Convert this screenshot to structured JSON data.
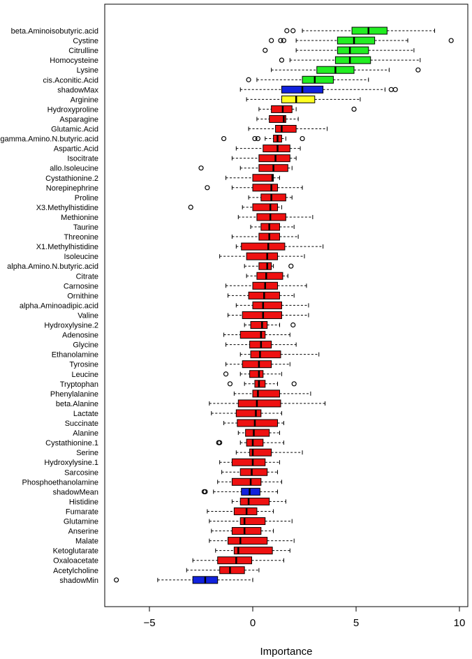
{
  "chart_data": {
    "type": "boxplot",
    "title": "",
    "xlabel": "Importance",
    "ylabel": "",
    "xlim": [
      -7.2,
      10.6
    ],
    "xticks": [
      -5,
      0,
      5,
      10
    ],
    "xtick_labels": [
      "−5",
      "0",
      "5",
      "10"
    ],
    "colors": {
      "confirmed": "#22ee22",
      "rejected": "#ee1111",
      "tentative": "#ffff22",
      "shadow": "#1122dd"
    },
    "items": [
      {
        "name": "beta.Aminoisobutyric.acid",
        "status": "confirmed",
        "wmin": 2.4,
        "q1": 4.8,
        "med": 5.6,
        "q3": 6.5,
        "wmax": 8.8,
        "out": [
          1.65,
          1.95
        ]
      },
      {
        "name": "Cystine",
        "status": "confirmed",
        "wmin": 2.1,
        "q1": 4.1,
        "med": 4.9,
        "q3": 5.9,
        "wmax": 7.5,
        "out": [
          0.9,
          1.35,
          1.5,
          9.6
        ]
      },
      {
        "name": "Citrulline",
        "status": "confirmed",
        "wmin": 2.1,
        "q1": 4.1,
        "med": 4.7,
        "q3": 5.6,
        "wmax": 7.8,
        "out": [
          0.6
        ]
      },
      {
        "name": "Homocysteine",
        "status": "confirmed",
        "wmin": 1.8,
        "q1": 4.0,
        "med": 4.7,
        "q3": 5.7,
        "wmax": 8.1,
        "out": [
          1.4
        ]
      },
      {
        "name": "Lysine",
        "status": "confirmed",
        "wmin": 0.9,
        "q1": 3.1,
        "med": 4.0,
        "q3": 4.9,
        "wmax": 6.6,
        "out": [
          8.0
        ]
      },
      {
        "name": "cis.Aconitic.Acid",
        "status": "confirmed",
        "wmin": 0.2,
        "q1": 2.4,
        "med": 3.0,
        "q3": 3.9,
        "wmax": 5.6,
        "out": [
          -0.2
        ]
      },
      {
        "name": "shadowMax",
        "status": "shadow",
        "wmin": -0.6,
        "q1": 1.4,
        "med": 2.4,
        "q3": 3.4,
        "wmax": 6.4,
        "out": [
          6.7,
          6.9
        ]
      },
      {
        "name": "Arginine",
        "status": "tentative",
        "wmin": -0.3,
        "q1": 1.4,
        "med": 2.1,
        "q3": 3.0,
        "wmax": 5.2,
        "out": []
      },
      {
        "name": "Hydroxyproline",
        "status": "rejected",
        "wmin": 0.3,
        "q1": 0.9,
        "med": 1.45,
        "q3": 1.9,
        "wmax": 2.1,
        "out": [
          4.9
        ]
      },
      {
        "name": "Asparagine",
        "status": "rejected",
        "wmin": 0.2,
        "q1": 0.8,
        "med": 1.5,
        "q3": 1.6,
        "wmax": 2.2,
        "out": []
      },
      {
        "name": "Glutamic.Acid",
        "status": "rejected",
        "wmin": -0.2,
        "q1": 1.1,
        "med": 1.4,
        "q3": 2.1,
        "wmax": 3.6,
        "out": []
      },
      {
        "name": "gamma.Amino.N.butyric.acid",
        "status": "rejected",
        "wmin": 0.6,
        "q1": 1.0,
        "med": 1.2,
        "q3": 1.4,
        "wmax": 1.6,
        "out": [
          -1.4,
          0.1,
          0.25,
          2.4
        ]
      },
      {
        "name": "Aspartic.Acid",
        "status": "rejected",
        "wmin": -0.8,
        "q1": 0.5,
        "med": 1.2,
        "q3": 1.8,
        "wmax": 2.3,
        "out": []
      },
      {
        "name": "Isocitrate",
        "status": "rejected",
        "wmin": -1.0,
        "q1": 0.3,
        "med": 1.1,
        "q3": 1.8,
        "wmax": 2.1,
        "out": []
      },
      {
        "name": "allo.Isoleucine",
        "status": "rejected",
        "wmin": -0.6,
        "q1": 0.3,
        "med": 1.0,
        "q3": 1.7,
        "wmax": 1.9,
        "out": [
          -2.5
        ]
      },
      {
        "name": "Cystathionine.2",
        "status": "rejected",
        "wmin": -1.3,
        "q1": 0.0,
        "med": 0.95,
        "q3": 1.0,
        "wmax": 1.3,
        "out": []
      },
      {
        "name": "Norepinephrine",
        "status": "rejected",
        "wmin": -1.0,
        "q1": 0.0,
        "med": 0.9,
        "q3": 1.2,
        "wmax": 2.4,
        "out": [
          -2.2
        ]
      },
      {
        "name": "Proline",
        "status": "rejected",
        "wmin": -0.2,
        "q1": 0.4,
        "med": 0.9,
        "q3": 1.6,
        "wmax": 1.9,
        "out": []
      },
      {
        "name": "X3.Methylhistidine",
        "status": "rejected",
        "wmin": -0.5,
        "q1": 0.0,
        "med": 0.85,
        "q3": 1.2,
        "wmax": 1.4,
        "out": [
          -3.0
        ]
      },
      {
        "name": "Methionine",
        "status": "rejected",
        "wmin": -0.7,
        "q1": 0.2,
        "med": 0.85,
        "q3": 1.6,
        "wmax": 2.9,
        "out": []
      },
      {
        "name": "Taurine",
        "status": "rejected",
        "wmin": -0.1,
        "q1": 0.4,
        "med": 0.8,
        "q3": 1.3,
        "wmax": 2.0,
        "out": []
      },
      {
        "name": "Threonine",
        "status": "rejected",
        "wmin": -1.0,
        "q1": 0.3,
        "med": 0.8,
        "q3": 1.3,
        "wmax": 2.2,
        "out": []
      },
      {
        "name": "X1.Methylhistidine",
        "status": "rejected",
        "wmin": -0.8,
        "q1": -0.55,
        "med": 0.75,
        "q3": 1.55,
        "wmax": 3.4,
        "out": []
      },
      {
        "name": "Isoleucine",
        "status": "rejected",
        "wmin": -1.6,
        "q1": -0.3,
        "med": 0.7,
        "q3": 1.2,
        "wmax": 2.5,
        "out": []
      },
      {
        "name": "alpha.Amino.N.butyric.acid",
        "status": "rejected",
        "wmin": -0.4,
        "q1": 0.3,
        "med": 0.7,
        "q3": 0.9,
        "wmax": 1.0,
        "out": [
          1.85
        ]
      },
      {
        "name": "Citrate",
        "status": "rejected",
        "wmin": -0.3,
        "q1": 0.2,
        "med": 0.65,
        "q3": 1.45,
        "wmax": 1.7,
        "out": []
      },
      {
        "name": "Carnosine",
        "status": "rejected",
        "wmin": -1.3,
        "q1": 0.0,
        "med": 0.6,
        "q3": 1.2,
        "wmax": 2.6,
        "out": []
      },
      {
        "name": "Ornithine",
        "status": "rejected",
        "wmin": -1.2,
        "q1": -0.2,
        "med": 0.55,
        "q3": 1.3,
        "wmax": 2.0,
        "out": []
      },
      {
        "name": "alpha.Aminoadipic.acid",
        "status": "rejected",
        "wmin": -0.8,
        "q1": 0.0,
        "med": 0.5,
        "q3": 1.4,
        "wmax": 2.7,
        "out": []
      },
      {
        "name": "Valine",
        "status": "rejected",
        "wmin": -1.2,
        "q1": -0.5,
        "med": 0.5,
        "q3": 1.4,
        "wmax": 2.7,
        "out": []
      },
      {
        "name": "Hydroxylysine.2",
        "status": "rejected",
        "wmin": -0.4,
        "q1": -0.1,
        "med": 0.45,
        "q3": 0.7,
        "wmax": 1.3,
        "out": [
          1.95
        ]
      },
      {
        "name": "Adenosine",
        "status": "rejected",
        "wmin": -1.4,
        "q1": -0.6,
        "med": 0.4,
        "q3": 0.6,
        "wmax": 1.8,
        "out": []
      },
      {
        "name": "Glycine",
        "status": "rejected",
        "wmin": -1.3,
        "q1": -0.15,
        "med": 0.4,
        "q3": 0.9,
        "wmax": 2.1,
        "out": []
      },
      {
        "name": "Ethanolamine",
        "status": "rejected",
        "wmin": -0.6,
        "q1": -0.1,
        "med": 0.35,
        "q3": 1.35,
        "wmax": 3.2,
        "out": []
      },
      {
        "name": "Tyrosine",
        "status": "rejected",
        "wmin": -1.3,
        "q1": -0.5,
        "med": 0.3,
        "q3": 0.9,
        "wmax": 1.8,
        "out": []
      },
      {
        "name": "Leucine",
        "status": "rejected",
        "wmin": -0.6,
        "q1": -0.15,
        "med": 0.3,
        "q3": 0.5,
        "wmax": 1.4,
        "out": [
          -1.3
        ]
      },
      {
        "name": "Tryptophan",
        "status": "rejected",
        "wmin": -0.4,
        "q1": 0.1,
        "med": 0.3,
        "q3": 0.6,
        "wmax": 1.2,
        "out": [
          -1.1,
          2.0
        ]
      },
      {
        "name": "Phenylalanine",
        "status": "rejected",
        "wmin": -0.9,
        "q1": 0.0,
        "med": 0.25,
        "q3": 1.3,
        "wmax": 2.8,
        "out": []
      },
      {
        "name": "beta.Alanine",
        "status": "rejected",
        "wmin": -2.1,
        "q1": -0.7,
        "med": 0.2,
        "q3": 1.35,
        "wmax": 3.5,
        "out": []
      },
      {
        "name": "Lactate",
        "status": "rejected",
        "wmin": -2.0,
        "q1": -0.8,
        "med": 0.15,
        "q3": 0.4,
        "wmax": 1.4,
        "out": []
      },
      {
        "name": "Succinate",
        "status": "rejected",
        "wmin": -1.4,
        "q1": -0.75,
        "med": 0.1,
        "q3": 1.2,
        "wmax": 1.5,
        "out": []
      },
      {
        "name": "Alanine",
        "status": "rejected",
        "wmin": -0.7,
        "q1": -0.35,
        "med": 0.05,
        "q3": 0.8,
        "wmax": 1.3,
        "out": []
      },
      {
        "name": "Cystathionine.1",
        "status": "rejected",
        "wmin": -0.6,
        "q1": -0.3,
        "med": 0.0,
        "q3": 0.5,
        "wmax": 1.5,
        "out": [
          -1.65,
          -1.6
        ]
      },
      {
        "name": "Serine",
        "status": "rejected",
        "wmin": -0.8,
        "q1": -0.15,
        "med": 0.0,
        "q3": 0.9,
        "wmax": 2.4,
        "out": []
      },
      {
        "name": "Hydroxylysine.1",
        "status": "rejected",
        "wmin": -1.6,
        "q1": -1.0,
        "med": 0.0,
        "q3": 0.6,
        "wmax": 1.3,
        "out": []
      },
      {
        "name": "Sarcosine",
        "status": "rejected",
        "wmin": -1.5,
        "q1": -0.6,
        "med": -0.05,
        "q3": 0.7,
        "wmax": 1.2,
        "out": []
      },
      {
        "name": "Phosphoethanolamine",
        "status": "rejected",
        "wmin": -1.7,
        "q1": -1.0,
        "med": -0.1,
        "q3": 0.4,
        "wmax": 1.4,
        "out": []
      },
      {
        "name": "shadowMean",
        "status": "shadow",
        "wmin": -1.9,
        "q1": -0.55,
        "med": -0.15,
        "q3": 0.35,
        "wmax": 1.2,
        "out": [
          -2.35,
          -2.3
        ]
      },
      {
        "name": "Histidine",
        "status": "rejected",
        "wmin": -1.0,
        "q1": -0.6,
        "med": -0.2,
        "q3": 0.8,
        "wmax": 1.6,
        "out": []
      },
      {
        "name": "Fumarate",
        "status": "rejected",
        "wmin": -2.2,
        "q1": -0.9,
        "med": -0.3,
        "q3": 0.2,
        "wmax": 1.0,
        "out": []
      },
      {
        "name": "Glutamine",
        "status": "rejected",
        "wmin": -2.1,
        "q1": -0.6,
        "med": -0.4,
        "q3": 0.6,
        "wmax": 1.9,
        "out": []
      },
      {
        "name": "Anserine",
        "status": "rejected",
        "wmin": -2.0,
        "q1": -1.0,
        "med": -0.4,
        "q3": 0.4,
        "wmax": 1.0,
        "out": []
      },
      {
        "name": "Malate",
        "status": "rejected",
        "wmin": -2.1,
        "q1": -1.2,
        "med": -0.6,
        "q3": 0.7,
        "wmax": 2.0,
        "out": []
      },
      {
        "name": "Ketoglutarate",
        "status": "rejected",
        "wmin": -1.8,
        "q1": -0.9,
        "med": -0.7,
        "q3": 0.95,
        "wmax": 1.8,
        "out": []
      },
      {
        "name": "Oxaloacetate",
        "status": "rejected",
        "wmin": -2.9,
        "q1": -1.7,
        "med": -0.8,
        "q3": -0.05,
        "wmax": 1.5,
        "out": []
      },
      {
        "name": "Acetylcholine",
        "status": "rejected",
        "wmin": -3.2,
        "q1": -1.6,
        "med": -1.1,
        "q3": -0.4,
        "wmax": 0.3,
        "out": []
      },
      {
        "name": "shadowMin",
        "status": "shadow",
        "wmin": -4.6,
        "q1": -2.9,
        "med": -2.3,
        "q3": -1.7,
        "wmax": 0.0,
        "out": [
          -6.6
        ]
      }
    ]
  }
}
